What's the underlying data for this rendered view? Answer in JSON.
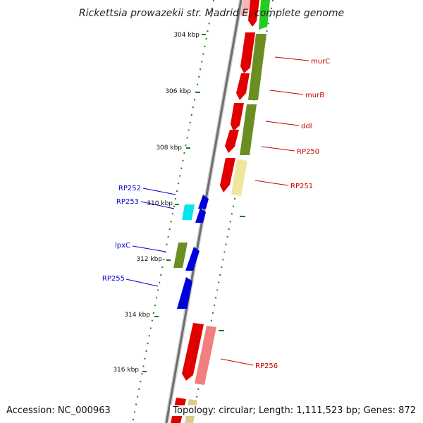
{
  "title": "Rickettsia prowazekii str. Madrid E, complete genome",
  "footer": {
    "accession": "Accession: NC_000963",
    "topology": "Topology: circular; Length: 1,111,523 bp; Genes: 872"
  },
  "colors": {
    "backbone": "#7a7a7a",
    "tick": "#1e7a1e",
    "label_forward": "#cc0000",
    "label_reverse": "#0000cc",
    "red": "#e00000",
    "olive": "#6b8e23",
    "light_yellow": "#f0e6a0",
    "pink": "#f08080",
    "blue": "#0000dd",
    "cyan": "#00e5ee",
    "green": "#22cc22"
  },
  "ticks": [
    {
      "label": "304 kbp"
    },
    {
      "label": "306 kbp"
    },
    {
      "label": "308 kbp"
    },
    {
      "label": "310 kbp"
    },
    {
      "label": "312 kbp"
    },
    {
      "label": "314 kbp"
    },
    {
      "label": "316 kbp"
    }
  ],
  "gene_labels": [
    {
      "name": "murC",
      "strand": "forward"
    },
    {
      "name": "murB",
      "strand": "forward"
    },
    {
      "name": "ddl",
      "strand": "forward"
    },
    {
      "name": "RP250",
      "strand": "forward"
    },
    {
      "name": "RP251",
      "strand": "forward"
    },
    {
      "name": "RP252",
      "strand": "reverse"
    },
    {
      "name": "RP253",
      "strand": "reverse"
    },
    {
      "name": "lpxC",
      "strand": "reverse"
    },
    {
      "name": "RP255",
      "strand": "reverse"
    },
    {
      "name": "RP256",
      "strand": "forward"
    }
  ]
}
